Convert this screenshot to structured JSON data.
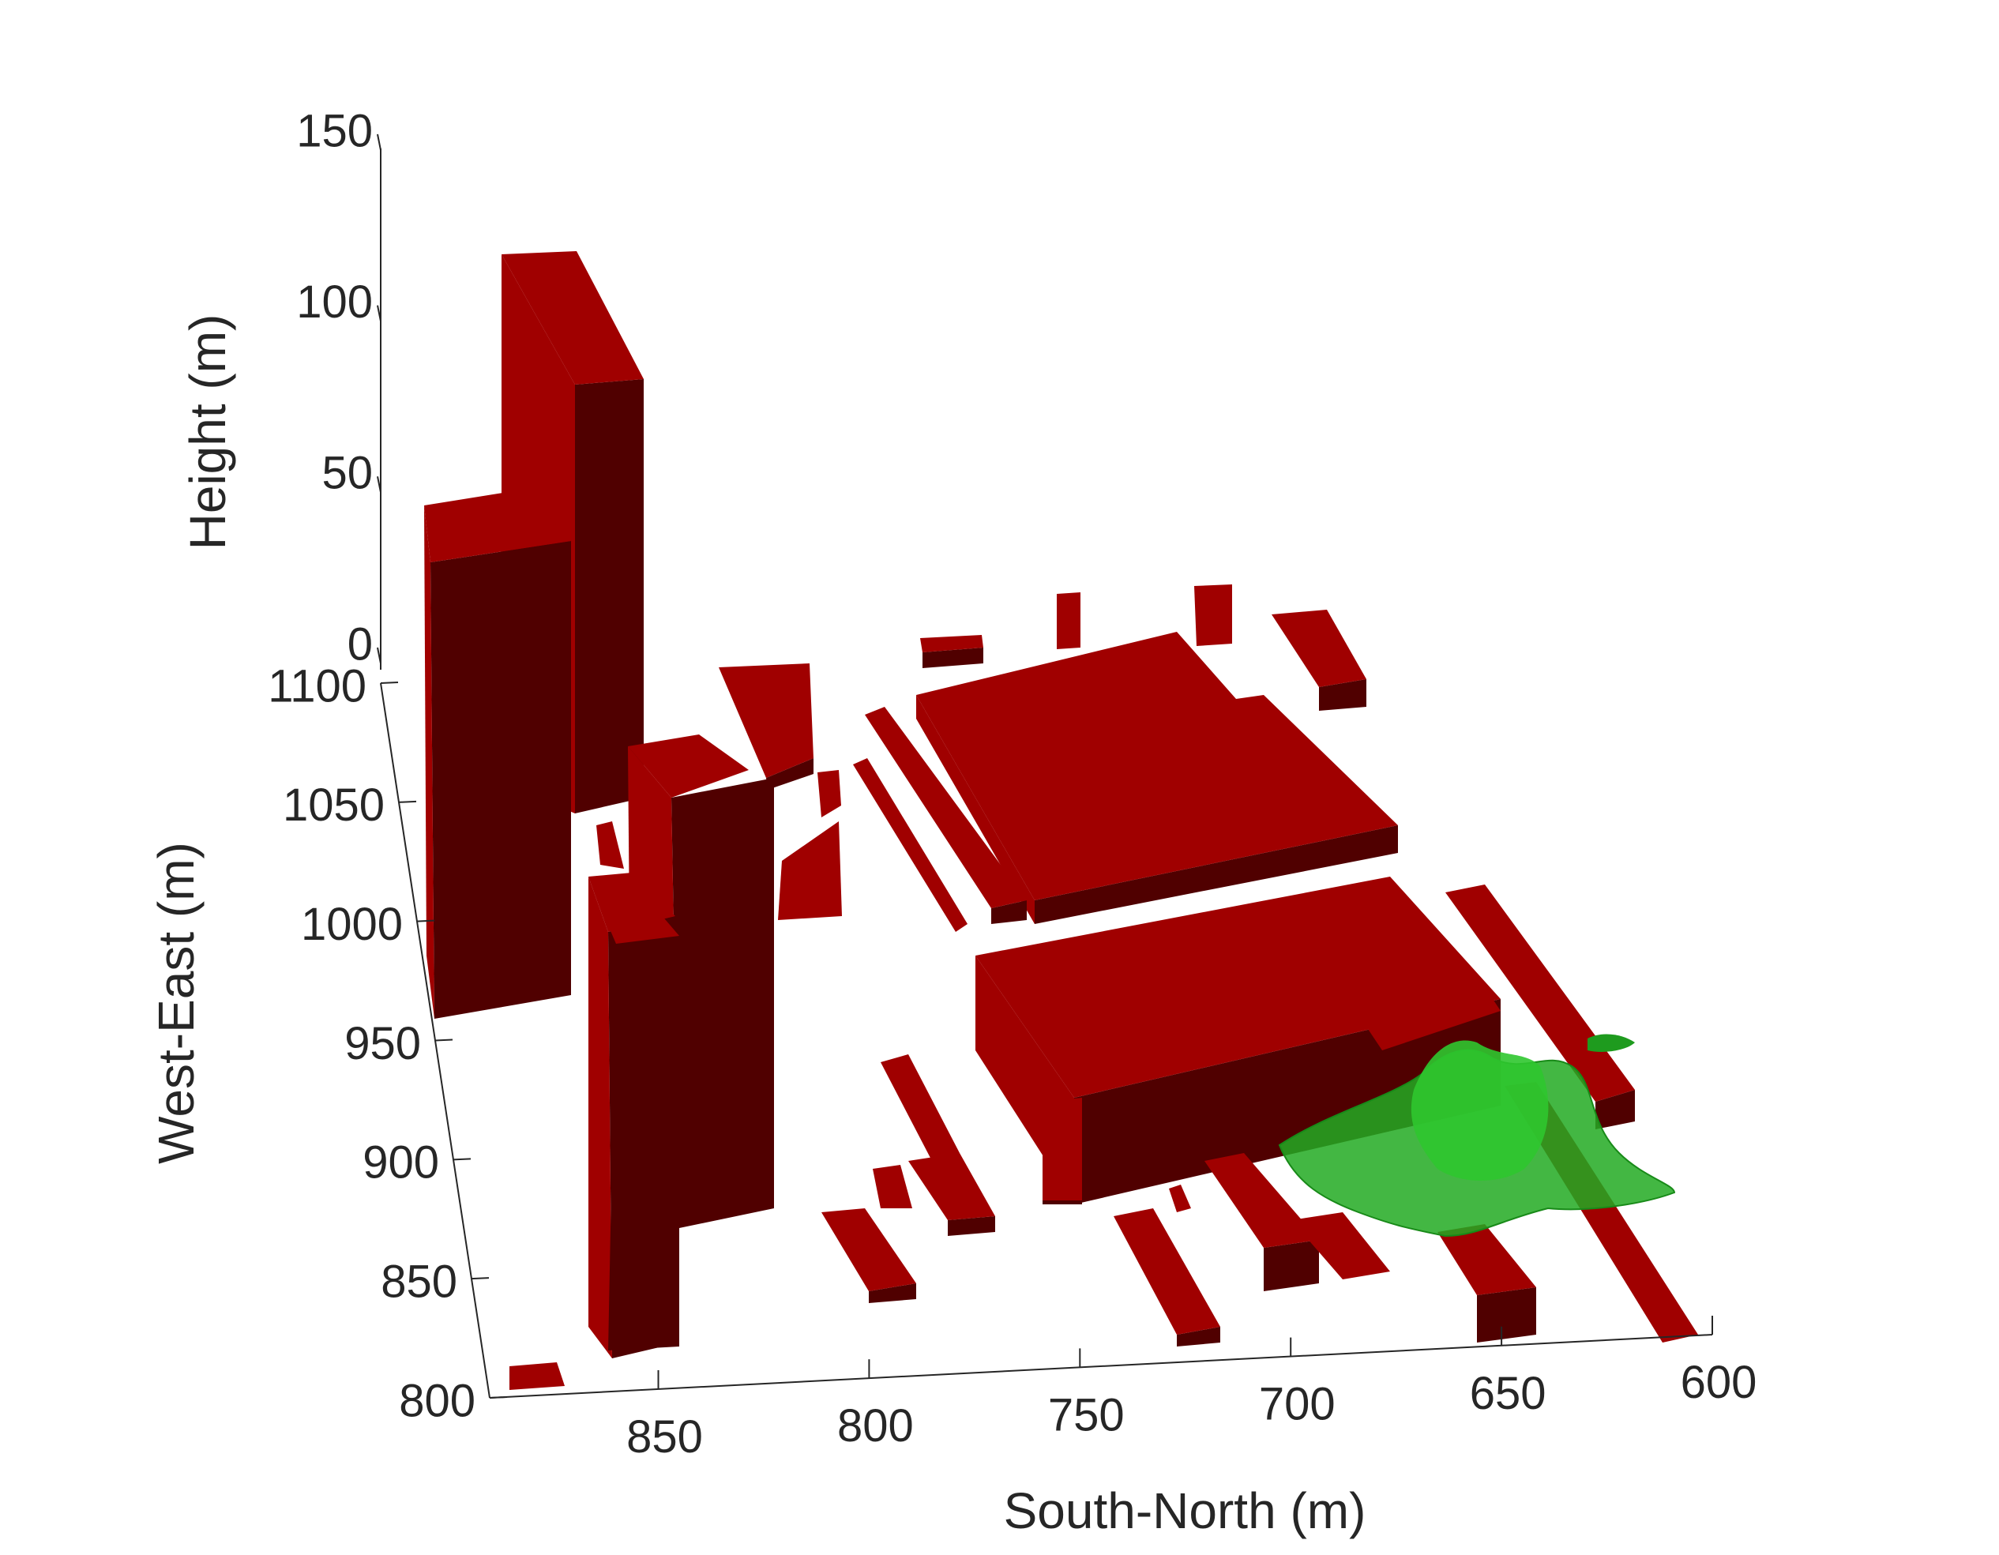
{
  "chart_data": {
    "type": "3d-surface-scene",
    "title": "",
    "xlabel": "South-North (m)",
    "ylabel": "West-East (m)",
    "zlabel": "Height (m)",
    "x_ticks": [
      850,
      800,
      750,
      700,
      650,
      600
    ],
    "y_ticks": [
      800,
      850,
      900,
      950,
      1000,
      1050,
      1100
    ],
    "z_ticks": [
      0,
      50,
      100,
      150
    ],
    "xlim": [
      600,
      890
    ],
    "ylim": [
      800,
      1100
    ],
    "zlim": [
      0,
      150
    ],
    "grid": false,
    "legend": "none",
    "series": [
      {
        "kind": "buildings",
        "color_top": "#a00000",
        "color_side": "#500000"
      },
      {
        "kind": "concentration-isosurface",
        "color": "#22aa22"
      }
    ]
  }
}
